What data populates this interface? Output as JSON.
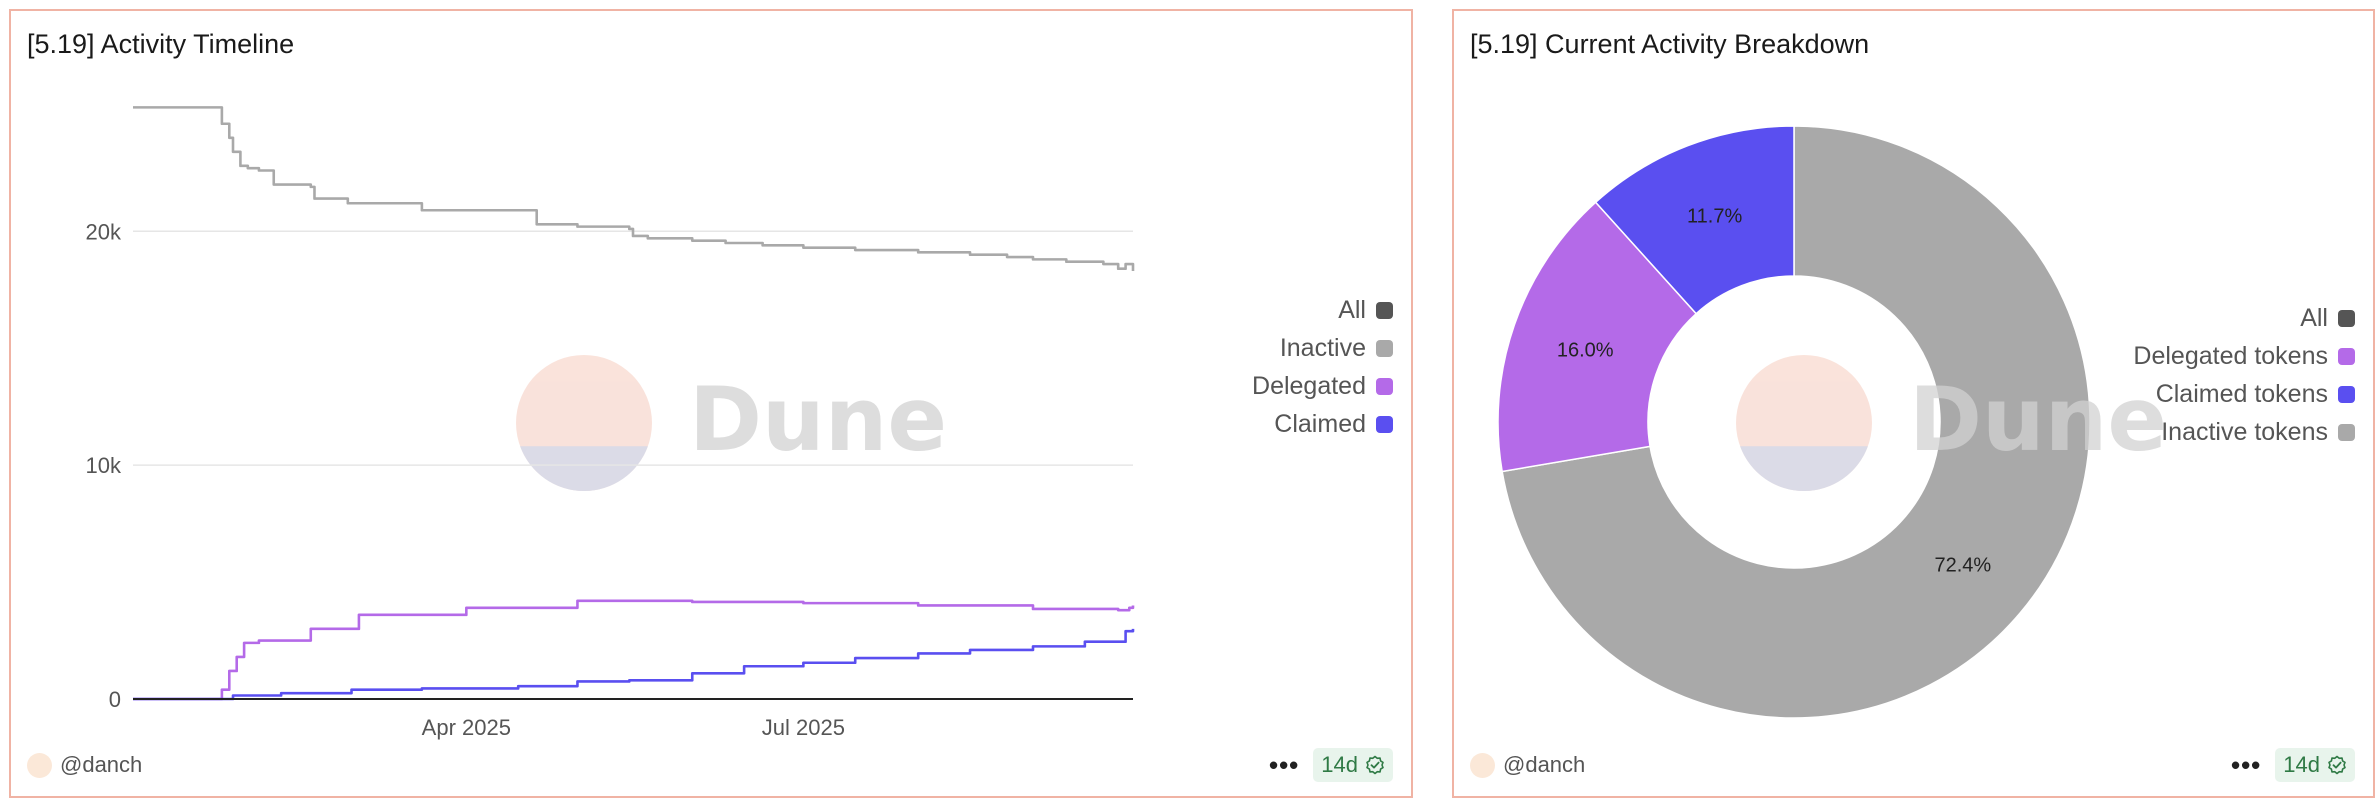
{
  "panels": {
    "timeline": {
      "title": "[5.19] Activity Timeline",
      "author": "@danch",
      "more": "•••",
      "refresh_badge": "14d",
      "watermark": "Dune"
    },
    "breakdown": {
      "title": "[5.19] Current Activity Breakdown",
      "author": "@danch",
      "more": "•••",
      "refresh_badge": "14d",
      "watermark": "Dune"
    }
  },
  "colors": {
    "all": "#555555",
    "inactive": "#a9a9a9",
    "delegated": "#b46ae8",
    "claimed": "#5a4ff0",
    "panel_border": "#f0b3a4",
    "badge_bg": "#e8f4ec",
    "badge_text": "#2f7a45"
  },
  "chart_data": [
    {
      "type": "line",
      "y_ticks": [
        0,
        10000,
        20000
      ],
      "y_tick_labels": [
        "0",
        "10k",
        "20k"
      ],
      "x_tick_labels": [
        "Apr 2025",
        "Jul 2025"
      ],
      "x_range": [
        "2025-01-01",
        "2025-09-28"
      ],
      "x_ticks": [
        "2025-04-01",
        "2025-07-01"
      ],
      "ylim": [
        0,
        26000
      ],
      "grid": true,
      "legend_position": "right",
      "legend": [
        "All",
        "Inactive",
        "Delegated",
        "Claimed"
      ],
      "series": [
        {
          "name": "All",
          "x": [
            "2025-01-01",
            "2025-09-28"
          ],
          "values": [
            0,
            0
          ]
        },
        {
          "name": "Inactive",
          "x": [
            "2025-01-01",
            "2025-01-24",
            "2025-01-25",
            "2025-01-27",
            "2025-01-28",
            "2025-01-30",
            "2025-02-01",
            "2025-02-04",
            "2025-02-08",
            "2025-02-18",
            "2025-02-19",
            "2025-02-28",
            "2025-03-10",
            "2025-03-20",
            "2025-04-01",
            "2025-04-10",
            "2025-04-20",
            "2025-05-01",
            "2025-05-15",
            "2025-05-16",
            "2025-05-20",
            "2025-06-01",
            "2025-06-10",
            "2025-06-20",
            "2025-07-01",
            "2025-07-15",
            "2025-08-01",
            "2025-08-15",
            "2025-08-25",
            "2025-09-01",
            "2025-09-10",
            "2025-09-20",
            "2025-09-24",
            "2025-09-26",
            "2025-09-28"
          ],
          "values": [
            25300,
            25300,
            24600,
            24000,
            23400,
            22800,
            22700,
            22600,
            22000,
            21900,
            21400,
            21200,
            21200,
            20900,
            20900,
            20900,
            20300,
            20200,
            20100,
            19800,
            19700,
            19600,
            19500,
            19400,
            19300,
            19200,
            19100,
            19000,
            18900,
            18800,
            18700,
            18600,
            18400,
            18600,
            18300
          ]
        },
        {
          "name": "Delegated",
          "x": [
            "2025-01-01",
            "2025-01-23",
            "2025-01-25",
            "2025-01-27",
            "2025-01-29",
            "2025-01-31",
            "2025-02-04",
            "2025-02-08",
            "2025-02-18",
            "2025-02-22",
            "2025-03-03",
            "2025-03-10",
            "2025-03-20",
            "2025-04-01",
            "2025-04-10",
            "2025-04-20",
            "2025-05-01",
            "2025-06-01",
            "2025-07-01",
            "2025-08-01",
            "2025-09-01",
            "2025-09-24",
            "2025-09-27",
            "2025-09-28"
          ],
          "values": [
            0,
            0,
            400,
            1200,
            1800,
            2400,
            2500,
            2500,
            3000,
            3000,
            3600,
            3600,
            3600,
            3900,
            3900,
            3900,
            4200,
            4150,
            4100,
            4000,
            3850,
            3800,
            3900,
            4000
          ]
        },
        {
          "name": "Claimed",
          "x": [
            "2025-01-01",
            "2025-01-24",
            "2025-01-28",
            "2025-02-10",
            "2025-03-01",
            "2025-03-20",
            "2025-04-15",
            "2025-05-01",
            "2025-05-15",
            "2025-06-01",
            "2025-06-15",
            "2025-07-01",
            "2025-07-15",
            "2025-08-01",
            "2025-08-15",
            "2025-09-01",
            "2025-09-15",
            "2025-09-26",
            "2025-09-28"
          ],
          "values": [
            0,
            0,
            150,
            250,
            400,
            450,
            550,
            750,
            800,
            1100,
            1400,
            1550,
            1750,
            1950,
            2100,
            2250,
            2450,
            2900,
            3000
          ]
        }
      ]
    },
    {
      "type": "pie",
      "legend_position": "right",
      "legend": [
        "All",
        "Delegated tokens",
        "Claimed tokens",
        "Inactive tokens"
      ],
      "slices": [
        {
          "name": "Inactive tokens",
          "value": 72.4,
          "label": "72.4%"
        },
        {
          "name": "Delegated tokens",
          "value": 16.0,
          "label": "16.0%"
        },
        {
          "name": "Claimed tokens",
          "value": 11.7,
          "label": "11.7%"
        }
      ]
    }
  ]
}
